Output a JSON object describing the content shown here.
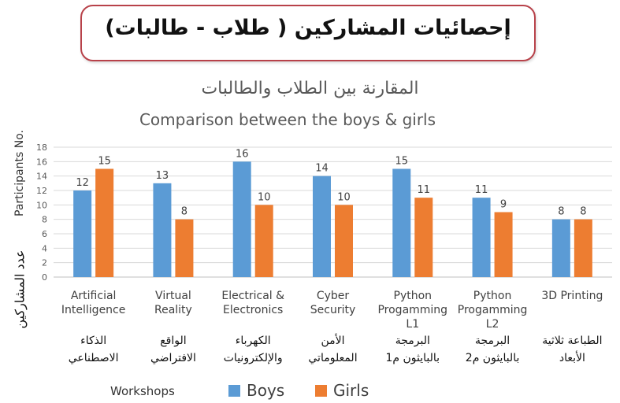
{
  "banner": {
    "title": "إحصائيات المشاركين ( طلاب - طالبات)"
  },
  "chart_data": {
    "type": "bar",
    "title_ar": "المقارنة بين الطلاب والطالبات",
    "title": "Comparison between the boys & girls",
    "ylabel": "Participants No.",
    "ylabel_ar": "عدد المشاركين",
    "xlabel": "Workshops",
    "ylim": [
      0,
      18
    ],
    "yticks": [
      0,
      2,
      4,
      6,
      8,
      10,
      12,
      14,
      16,
      18
    ],
    "grid": true,
    "legend_position": "bottom",
    "categories": [
      {
        "en": [
          "Artificial",
          "Intelligence"
        ],
        "ar": [
          "الذكاء",
          "الاصطناعي"
        ]
      },
      {
        "en": [
          "Virtual",
          "Reality"
        ],
        "ar": [
          "الواقع",
          "الافتراضي"
        ]
      },
      {
        "en": [
          "Electrical &",
          "Electronics"
        ],
        "ar": [
          "الكهرباء",
          "والإلكترونيات"
        ]
      },
      {
        "en": [
          "Cyber",
          "Security"
        ],
        "ar": [
          "الأمن",
          "المعلوماتي"
        ]
      },
      {
        "en": [
          "Python",
          "Progamming",
          "L1"
        ],
        "ar": [
          "البرمجة",
          "بالبايثون م1"
        ]
      },
      {
        "en": [
          "Python",
          "Progamming",
          "L2"
        ],
        "ar": [
          "البرمجة",
          "بالبايثون م2"
        ]
      },
      {
        "en": [
          "3D Printing"
        ],
        "ar": [
          "الطباعة ثلاثية",
          "الأبعاد"
        ]
      }
    ],
    "series": [
      {
        "name": "Boys",
        "color": "#5b9bd5",
        "values": [
          12,
          13,
          16,
          14,
          15,
          11,
          8
        ]
      },
      {
        "name": "Girls",
        "color": "#ed7d31",
        "values": [
          15,
          8,
          10,
          10,
          11,
          9,
          8
        ]
      }
    ]
  }
}
